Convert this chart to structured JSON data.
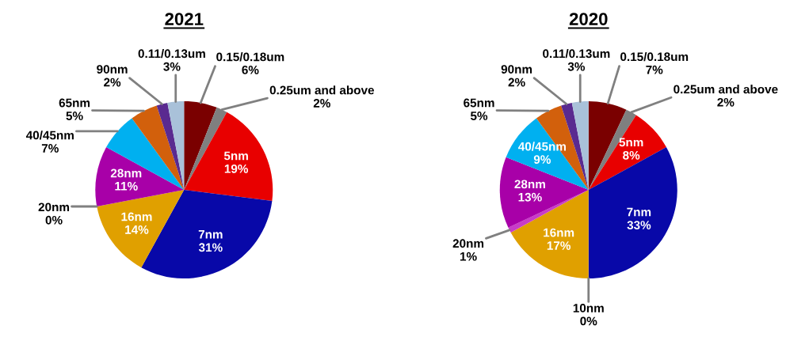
{
  "chart_data": [
    {
      "type": "pie",
      "title": "2021",
      "categories": [
        "0.15/0.18um",
        "0.25um and above",
        "5nm",
        "7nm",
        "16nm",
        "20nm",
        "28nm",
        "40/45nm",
        "65nm",
        "90nm",
        "0.11/0.13um"
      ],
      "values": [
        6,
        2,
        19,
        31,
        14,
        0,
        11,
        7,
        5,
        2,
        3
      ],
      "value_labels": [
        "6%",
        "2%",
        "19%",
        "31%",
        "14%",
        "0%",
        "11%",
        "7%",
        "5%",
        "2%",
        "3%"
      ],
      "colors": [
        "#7a0000",
        "#7f7f7f",
        "#e80000",
        "#0808a8",
        "#e0a000",
        null,
        "#a800a8",
        "#00b0f0",
        "#d2600c",
        "#5a2a90",
        "#a9c1d9"
      ]
    },
    {
      "type": "pie",
      "title": "2020",
      "categories": [
        "0.15/0.18um",
        "0.25um and above",
        "5nm",
        "7nm",
        "10nm",
        "16nm",
        "20nm",
        "28nm",
        "40/45nm",
        "65nm",
        "90nm",
        "0.11/0.13um"
      ],
      "values": [
        7,
        2,
        8,
        33,
        0,
        17,
        1,
        13,
        9,
        5,
        2,
        3
      ],
      "value_labels": [
        "7%",
        "2%",
        "8%",
        "33%",
        "0%",
        "17%",
        "1%",
        "13%",
        "9%",
        "5%",
        "2%",
        "3%"
      ],
      "colors": [
        "#7a0000",
        "#7f7f7f",
        "#e80000",
        "#0808a8",
        null,
        "#e0a000",
        "#c83cc8",
        "#a800a8",
        "#00b0f0",
        "#d2600c",
        "#5a2a90",
        "#a9c1d9"
      ]
    }
  ]
}
